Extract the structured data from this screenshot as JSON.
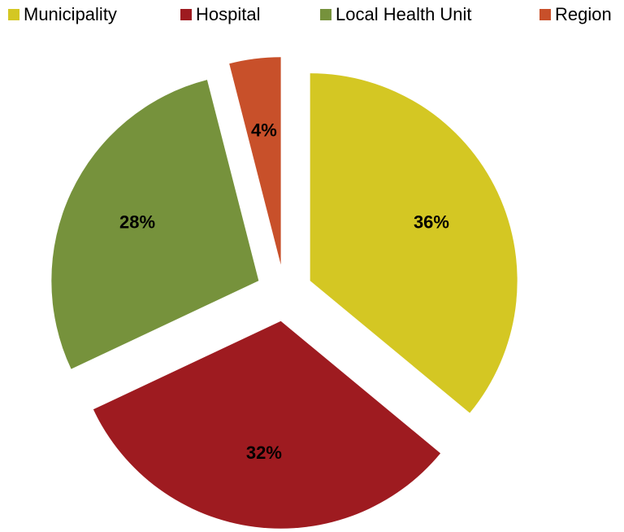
{
  "chart_data": {
    "type": "pie",
    "categories": [
      "Municipality",
      "Hospital",
      "Local Health Unit",
      "Region"
    ],
    "values": [
      36,
      32,
      28,
      4
    ],
    "value_labels": [
      "36%",
      "32%",
      "28%",
      "4%"
    ],
    "colors": [
      "#d4c723",
      "#9e1b20",
      "#76923c",
      "#c8502a"
    ],
    "legend": "top"
  }
}
